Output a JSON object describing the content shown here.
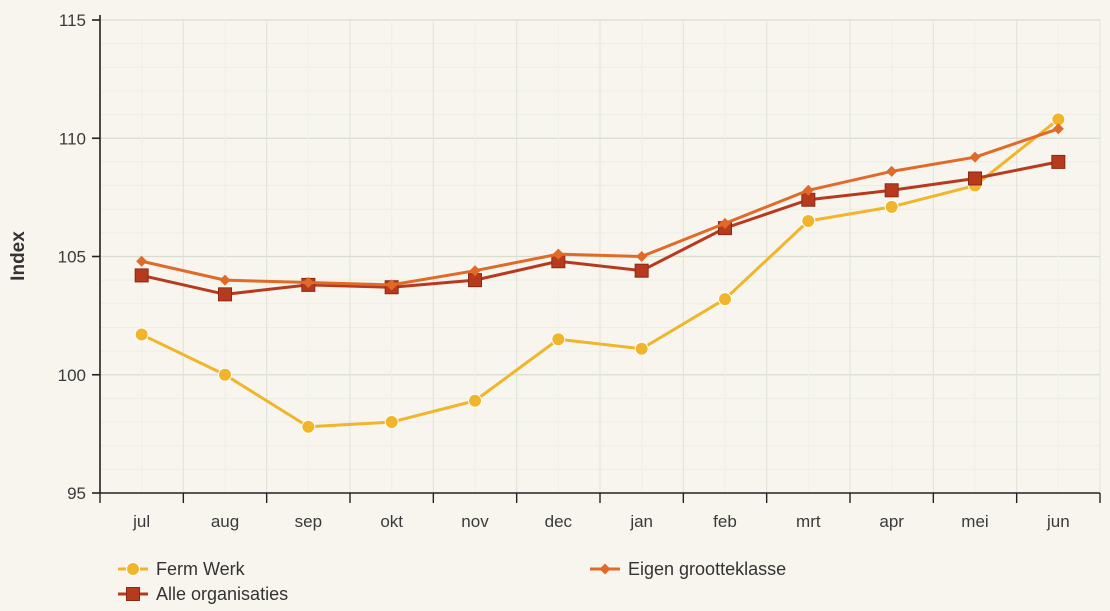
{
  "chart_data": {
    "type": "line",
    "title": "",
    "xlabel": "",
    "ylabel": "Index",
    "categories": [
      "jul",
      "aug",
      "sep",
      "okt",
      "nov",
      "dec",
      "jan",
      "feb",
      "mrt",
      "apr",
      "mei",
      "jun"
    ],
    "ylim": [
      95,
      115
    ],
    "yticks": [
      95,
      100,
      105,
      110,
      115
    ],
    "grid": true,
    "legend_position": "bottom",
    "series": [
      {
        "name": "Ferm Werk",
        "marker": "circle",
        "color": "#f0b52a",
        "values": [
          101.7,
          100.0,
          97.8,
          98.0,
          98.9,
          101.5,
          101.1,
          103.2,
          106.5,
          107.1,
          108.0,
          110.8
        ]
      },
      {
        "name": "Alle organisaties",
        "marker": "square",
        "color": "#b83a1e",
        "values": [
          104.2,
          103.4,
          103.8,
          103.7,
          104.0,
          104.8,
          104.4,
          106.2,
          107.4,
          107.8,
          108.3,
          109.0
        ]
      },
      {
        "name": "Eigen grootteklasse",
        "marker": "diamond",
        "color": "#e06a28",
        "values": [
          104.8,
          104.0,
          103.9,
          103.8,
          104.4,
          105.1,
          105.0,
          106.4,
          107.8,
          108.6,
          109.2,
          110.4
        ]
      }
    ]
  }
}
